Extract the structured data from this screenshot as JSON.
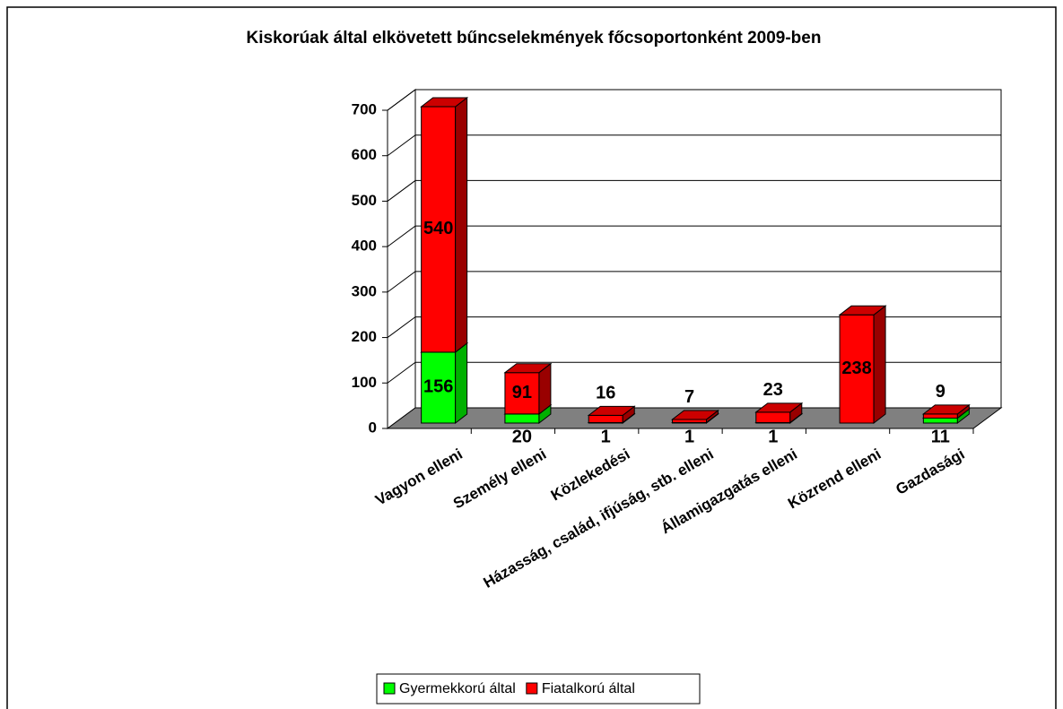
{
  "chart_data": {
    "type": "bar3d_stacked",
    "title": "Kiskorúak által elkövetett bűncselekmények főcsoportonként 2009-ben",
    "categories": [
      "Vagyon elleni",
      "Személy elleni",
      "Közlekedési",
      "Házasság, család, ifjúság, stb. elleni",
      "Államigazgatás elleni",
      "Közrend elleni",
      "Gazdasági"
    ],
    "series": [
      {
        "name": "Gyermekkorú által",
        "color": "#00ff00",
        "values": [
          156,
          20,
          1,
          1,
          1,
          null,
          11
        ]
      },
      {
        "name": "Fiatalkorú által",
        "color": "#ff0000",
        "values": [
          540,
          91,
          16,
          7,
          23,
          238,
          9
        ]
      }
    ],
    "ylim": [
      0,
      700
    ],
    "yticks": [
      0,
      100,
      200,
      300,
      400,
      500,
      600,
      700
    ],
    "grid": true
  }
}
